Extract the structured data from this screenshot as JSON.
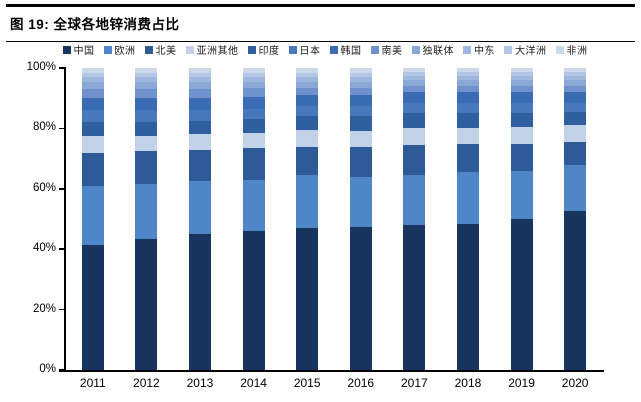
{
  "figure": {
    "title": "图 19:  全球各地锌消费占比"
  },
  "chart_data": {
    "type": "bar",
    "stacked": true,
    "percent_stacked": true,
    "title": "全球各地锌消费占比",
    "xlabel": "",
    "ylabel": "",
    "ylim": [
      0,
      100
    ],
    "yticks": [
      "0%",
      "20%",
      "40%",
      "60%",
      "80%",
      "100%"
    ],
    "grid": false,
    "legend_position": "top",
    "axis_color": "#000000",
    "categories": [
      "2011",
      "2012",
      "2013",
      "2014",
      "2015",
      "2016",
      "2017",
      "2018",
      "2019",
      "2020"
    ],
    "series": [
      {
        "name": "中国",
        "color": "#17355E",
        "values": [
          41.5,
          43.5,
          45.0,
          46.0,
          47.0,
          47.5,
          48.0,
          48.5,
          50.0,
          52.5
        ]
      },
      {
        "name": "欧洲",
        "color": "#4E86C8",
        "values": [
          19.5,
          18.0,
          17.5,
          17.0,
          17.5,
          16.5,
          16.5,
          17.0,
          16.0,
          15.5
        ]
      },
      {
        "name": "北美",
        "color": "#2E5B97",
        "values": [
          11.0,
          11.0,
          10.5,
          10.5,
          9.5,
          10.0,
          10.0,
          9.5,
          9.0,
          7.5
        ]
      },
      {
        "name": "亚洲其他",
        "color": "#C0D1E8",
        "values": [
          5.5,
          5.0,
          5.0,
          5.0,
          5.5,
          5.0,
          5.5,
          5.0,
          5.5,
          5.5
        ]
      },
      {
        "name": "印度",
        "color": "#2F5F9E",
        "values": [
          4.5,
          4.5,
          4.5,
          4.5,
          4.5,
          5.0,
          5.0,
          5.0,
          4.5,
          4.5
        ]
      },
      {
        "name": "日本",
        "color": "#4878BC",
        "values": [
          4.0,
          4.0,
          3.5,
          3.5,
          3.5,
          3.5,
          3.5,
          3.5,
          3.5,
          3.0
        ]
      },
      {
        "name": "韩国",
        "color": "#3A6CB4",
        "values": [
          4.0,
          4.0,
          4.0,
          4.0,
          3.5,
          3.5,
          3.5,
          3.5,
          3.5,
          3.5
        ]
      },
      {
        "name": "南美",
        "color": "#7092CC",
        "values": [
          3.0,
          3.0,
          3.0,
          3.0,
          2.5,
          2.5,
          2.0,
          2.0,
          2.0,
          2.0
        ]
      },
      {
        "name": "独联体",
        "color": "#8BA7D6",
        "values": [
          2.5,
          2.5,
          2.5,
          2.0,
          2.0,
          2.0,
          2.0,
          2.0,
          2.0,
          2.0
        ]
      },
      {
        "name": "中东",
        "color": "#9FB8DE",
        "values": [
          1.5,
          1.5,
          1.5,
          1.5,
          1.5,
          1.5,
          1.5,
          1.5,
          1.5,
          1.5
        ]
      },
      {
        "name": "大洋洲",
        "color": "#B3C6E4",
        "values": [
          1.5,
          1.5,
          1.5,
          1.5,
          1.5,
          1.5,
          1.3,
          1.3,
          1.3,
          1.3
        ]
      },
      {
        "name": "非洲",
        "color": "#CBD8EC",
        "values": [
          1.5,
          1.5,
          1.5,
          1.5,
          1.5,
          1.5,
          1.2,
          1.2,
          1.2,
          1.2
        ]
      }
    ]
  }
}
